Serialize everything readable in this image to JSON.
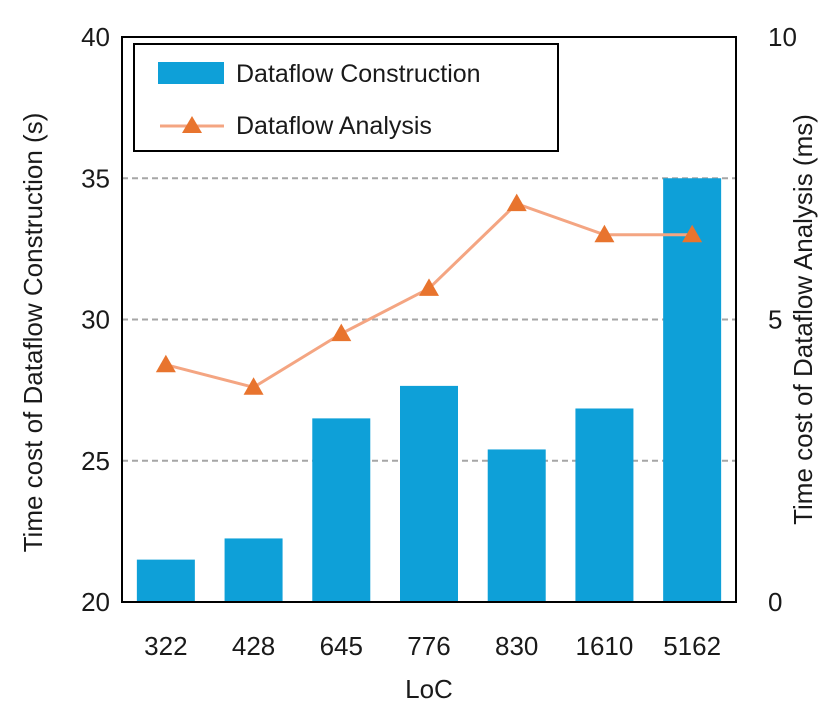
{
  "chart_data": {
    "type": "bar",
    "categories": [
      "322",
      "428",
      "645",
      "776",
      "830",
      "1610",
      "5162"
    ],
    "series": [
      {
        "name": "Dataflow Construction",
        "type": "bar",
        "axis": "left",
        "values": [
          21.5,
          22.25,
          26.5,
          27.65,
          25.4,
          26.85,
          35.0
        ],
        "color": "#0ea0d8"
      },
      {
        "name": "Dataflow Analysis",
        "type": "line",
        "axis": "right",
        "values": [
          4.2,
          3.8,
          4.75,
          5.55,
          7.05,
          6.5,
          6.5
        ],
        "line_color": "#f4a582",
        "marker_color": "#e8742e",
        "marker": "triangle"
      }
    ],
    "xlabel": "LoC",
    "ylabel": "Time cost of Dataflow Construction (s)",
    "y2label": "Time cost of Dataflow Analysis (ms)",
    "ylim": [
      20,
      40
    ],
    "y2lim": [
      0,
      10
    ],
    "yticks": [
      "20",
      "25",
      "30",
      "35",
      "40"
    ],
    "y2ticks": [
      "0",
      "5",
      "10"
    ],
    "gridlines": [
      25,
      30,
      35
    ],
    "legend": {
      "position": "top-left",
      "entries": [
        "Dataflow Construction",
        "Dataflow Analysis"
      ]
    }
  }
}
